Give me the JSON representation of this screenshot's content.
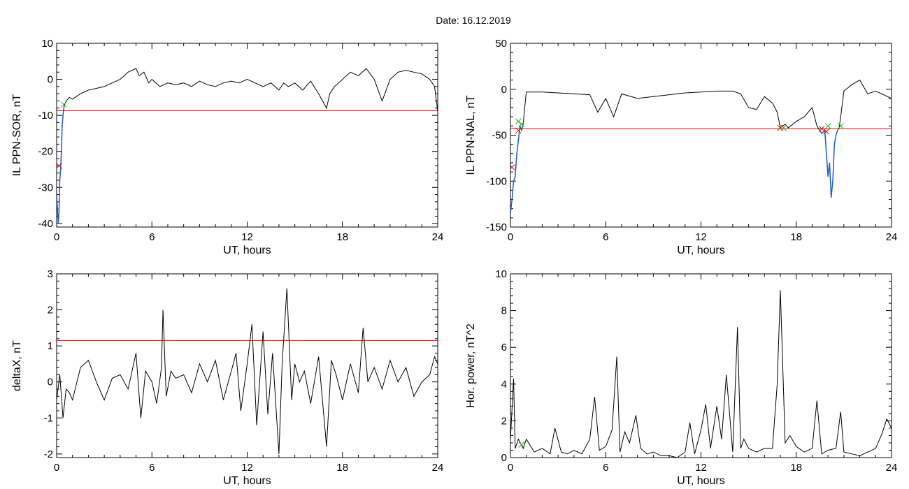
{
  "figure": {
    "title": "Date:  16.12.2019"
  },
  "colors": {
    "background": "#ffffff",
    "data_line": "#000000",
    "threshold_line": "#ff0000",
    "highlight_line": "#1f5fd0",
    "marker_red": "#d01010",
    "marker_green": "#20b020"
  },
  "chart_data": [
    {
      "id": "sor",
      "type": "line",
      "title": "",
      "xlabel": "UT, hours",
      "ylabel": "IL PPN-SOR, nT",
      "xlim": [
        0,
        24
      ],
      "ylim": [
        -41,
        10
      ],
      "xticks": [
        0,
        6,
        12,
        18,
        24
      ],
      "yticks": [
        -40,
        -30,
        -20,
        -10,
        0,
        10
      ],
      "threshold": -8.7,
      "series": [
        {
          "x": [
            0.0,
            0.1,
            0.15,
            0.2,
            0.25,
            0.3,
            0.35,
            0.4,
            0.45,
            0.5,
            0.6,
            0.8,
            1.0,
            1.5,
            2.0,
            2.5,
            3.0,
            3.5,
            4.0,
            4.5,
            5.0,
            5.2,
            5.5,
            5.8,
            6.0,
            6.5,
            7.0,
            7.5,
            8.0,
            8.5,
            9.0,
            9.5,
            10.0,
            10.5,
            11.0,
            11.5,
            12.0,
            12.5,
            13.0,
            13.5,
            14.0,
            14.3,
            14.6,
            15.0,
            15.5,
            16.0,
            16.5,
            17.0,
            17.2,
            17.5,
            18.0,
            18.5,
            19.0,
            19.5,
            20.0,
            20.5,
            21.0,
            21.5,
            22.0,
            22.5,
            23.0,
            23.5,
            23.8,
            24.0
          ],
          "values": [
            -32,
            -40,
            -37,
            -28,
            -25,
            -20,
            -13,
            -10,
            -8,
            -7,
            -6,
            -5,
            -5.5,
            -4,
            -3,
            -2.5,
            -2,
            -1,
            0,
            2,
            3,
            1,
            2,
            -1,
            0,
            -2,
            -1,
            -1.5,
            -1,
            -2,
            -0.5,
            -1.5,
            -2,
            -1,
            -0.5,
            -1,
            0,
            -1,
            -2,
            -1,
            -3,
            -1,
            -2,
            -1,
            -3,
            -0.5,
            -4,
            -8,
            -4,
            -2,
            0,
            2,
            1,
            3,
            0,
            -6,
            0,
            2,
            2.5,
            2,
            1.5,
            0,
            -2,
            -9
          ]
        }
      ],
      "highlight": {
        "x": [
          0.0,
          0.1,
          0.15,
          0.2,
          0.25,
          0.3,
          0.35,
          0.4,
          0.45
        ],
        "values": [
          -32,
          -40,
          -37,
          -28,
          -25,
          -20,
          -13,
          -10,
          -8
        ]
      },
      "markers": [
        {
          "kind": "start",
          "x": 0.15,
          "y": -24
        },
        {
          "kind": "end",
          "x": 0.45,
          "y": -7
        }
      ]
    },
    {
      "id": "nal",
      "type": "line",
      "title": "",
      "xlabel": "UT, hours",
      "ylabel": "IL PPN-NAL, nT",
      "xlim": [
        0,
        24
      ],
      "ylim": [
        -150,
        50
      ],
      "xticks": [
        0,
        6,
        12,
        18,
        24
      ],
      "yticks": [
        -150,
        -100,
        -50,
        0,
        50
      ],
      "threshold": -43,
      "series": [
        {
          "x": [
            0.0,
            0.1,
            0.2,
            0.3,
            0.4,
            0.5,
            0.6,
            0.7,
            0.8,
            0.9,
            1.0,
            1.5,
            2.0,
            3.0,
            4.0,
            5.0,
            5.5,
            6.0,
            6.5,
            7.0,
            8.0,
            9.0,
            10.0,
            11.0,
            12.0,
            13.0,
            14.0,
            14.5,
            15.0,
            15.5,
            16.0,
            16.5,
            16.8,
            17.0,
            17.3,
            17.5,
            18.0,
            18.5,
            19.0,
            19.3,
            19.6,
            19.8,
            20.0,
            20.1,
            20.2,
            20.3,
            20.4,
            20.5,
            20.6,
            20.7,
            20.8,
            21.0,
            21.5,
            22.0,
            22.5,
            23.0,
            23.5,
            24.0
          ],
          "values": [
            -135,
            -120,
            -100,
            -95,
            -70,
            -55,
            -40,
            -45,
            -38,
            -20,
            -3,
            -3,
            -3,
            -4,
            -5,
            -6,
            -25,
            -10,
            -30,
            -5,
            -10,
            -8,
            -6,
            -4,
            -3,
            -2,
            -2,
            -5,
            -20,
            -22,
            -8,
            -15,
            -25,
            -42,
            -38,
            -42,
            -35,
            -30,
            -20,
            -40,
            -48,
            -45,
            -95,
            -80,
            -118,
            -100,
            -60,
            -50,
            -45,
            -42,
            -30,
            -2,
            5,
            10,
            -5,
            -2,
            -6,
            -10
          ]
        }
      ],
      "highlight": {
        "x": [
          0.0,
          0.1,
          0.2,
          0.3,
          0.4,
          0.5,
          0.6,
          0.7,
          19.6,
          19.8,
          20.0,
          20.1,
          20.2,
          20.3,
          20.4,
          20.5,
          20.6
        ],
        "values": [
          -135,
          -120,
          -100,
          -95,
          -70,
          -55,
          -40,
          -45,
          -48,
          -45,
          -95,
          -80,
          -118,
          -100,
          -60,
          -50,
          -45
        ]
      },
      "markers": [
        {
          "kind": "start",
          "x": 0.1,
          "y": -85
        },
        {
          "kind": "start",
          "x": 0.5,
          "y": -45
        },
        {
          "kind": "end",
          "x": 0.5,
          "y": -35
        },
        {
          "kind": "end",
          "x": 0.7,
          "y": -38
        },
        {
          "kind": "start",
          "x": 17.0,
          "y": -42
        },
        {
          "kind": "end",
          "x": 17.2,
          "y": -42
        },
        {
          "kind": "start",
          "x": 19.6,
          "y": -43
        },
        {
          "kind": "start",
          "x": 19.9,
          "y": -46
        },
        {
          "kind": "end",
          "x": 20.0,
          "y": -40
        },
        {
          "kind": "end",
          "x": 20.8,
          "y": -40
        }
      ]
    },
    {
      "id": "deltax",
      "type": "line",
      "title": "",
      "xlabel": "UT, hours",
      "ylabel": "deltaX, nT",
      "xlim": [
        0,
        24
      ],
      "ylim": [
        -2.1,
        3
      ],
      "xticks": [
        0,
        6,
        12,
        18,
        24
      ],
      "yticks": [
        -2,
        -1,
        0,
        1,
        2,
        3
      ],
      "threshold": 1.15,
      "series": [
        {
          "x": [
            0.0,
            0.2,
            0.4,
            0.6,
            0.8,
            1.0,
            1.5,
            2.0,
            2.5,
            3.0,
            3.5,
            4.0,
            4.5,
            5.0,
            5.3,
            5.6,
            6.0,
            6.3,
            6.6,
            6.7,
            6.9,
            7.2,
            7.5,
            8.0,
            8.5,
            9.0,
            9.5,
            10.0,
            10.5,
            11.0,
            11.3,
            11.6,
            12.0,
            12.3,
            12.6,
            13.0,
            13.3,
            13.6,
            14.0,
            14.2,
            14.5,
            14.8,
            15.0,
            15.3,
            15.6,
            16.0,
            16.5,
            17.0,
            17.3,
            17.6,
            18.0,
            18.5,
            19.0,
            19.3,
            19.6,
            20.0,
            20.5,
            21.0,
            21.5,
            22.0,
            22.5,
            23.0,
            23.5,
            23.8,
            24.0
          ],
          "values": [
            -0.5,
            0.2,
            -1.0,
            -0.2,
            -0.3,
            -0.5,
            0.4,
            0.6,
            0.0,
            -0.5,
            0.1,
            0.2,
            -0.2,
            0.8,
            -1.0,
            0.3,
            0.0,
            -0.6,
            0.4,
            2.0,
            -0.4,
            0.3,
            0.1,
            0.2,
            -0.3,
            0.5,
            0.0,
            0.6,
            -0.5,
            0.3,
            0.8,
            -0.8,
            0.5,
            1.6,
            -1.2,
            1.4,
            -0.9,
            0.8,
            -2.0,
            0.5,
            2.6,
            -0.5,
            0.5,
            0.0,
            0.3,
            -0.6,
            0.7,
            -1.8,
            0.6,
            0.2,
            -0.5,
            0.5,
            -0.3,
            1.5,
            0.0,
            0.4,
            -0.2,
            0.6,
            0.0,
            0.4,
            -0.4,
            0.0,
            0.2,
            0.7,
            0.5
          ]
        }
      ]
    },
    {
      "id": "power",
      "type": "line",
      "title": "",
      "xlabel": "UT, hours",
      "ylabel": "Hor. power, nT^2",
      "xlim": [
        0,
        24
      ],
      "ylim": [
        0,
        10
      ],
      "xticks": [
        0,
        6,
        12,
        18,
        24
      ],
      "yticks": [
        0,
        2,
        4,
        6,
        8,
        10
      ],
      "series": [
        {
          "x": [
            0.0,
            0.2,
            0.3,
            0.5,
            0.8,
            1.0,
            1.5,
            2.0,
            2.5,
            2.8,
            3.2,
            3.6,
            4.0,
            4.5,
            5.0,
            5.3,
            5.6,
            6.0,
            6.4,
            6.7,
            6.9,
            7.2,
            7.5,
            7.9,
            8.2,
            8.6,
            9.0,
            9.5,
            10.0,
            10.5,
            11.0,
            11.3,
            11.6,
            12.0,
            12.3,
            12.6,
            13.0,
            13.3,
            13.6,
            14.0,
            14.3,
            14.5,
            14.7,
            15.0,
            15.5,
            16.0,
            16.5,
            16.8,
            17.0,
            17.3,
            17.6,
            18.0,
            18.5,
            19.0,
            19.3,
            19.6,
            20.0,
            20.5,
            20.8,
            21.0,
            21.5,
            22.0,
            22.5,
            23.0,
            23.4,
            23.7,
            24.0
          ],
          "values": [
            1.0,
            4.3,
            0.5,
            1.0,
            0.5,
            1.0,
            0.3,
            0.5,
            0.2,
            1.6,
            0.3,
            0.2,
            0.4,
            0.2,
            1.0,
            3.3,
            0.4,
            0.6,
            1.5,
            5.5,
            0.3,
            1.4,
            0.8,
            2.3,
            0.5,
            0.2,
            0.3,
            0.1,
            0.1,
            0.0,
            0.3,
            1.9,
            0.2,
            1.5,
            2.9,
            0.5,
            2.8,
            1.0,
            4.5,
            0.3,
            7.1,
            0.5,
            1.0,
            0.5,
            0.3,
            0.5,
            0.5,
            4.0,
            9.1,
            0.8,
            1.2,
            0.6,
            0.3,
            0.5,
            3.1,
            0.2,
            0.4,
            0.5,
            2.5,
            0.3,
            0.2,
            0.1,
            0.3,
            0.5,
            1.3,
            2.1,
            1.6
          ]
        }
      ],
      "markers": [
        {
          "kind": "end",
          "x": 0.7,
          "y": 0.7
        }
      ]
    }
  ]
}
